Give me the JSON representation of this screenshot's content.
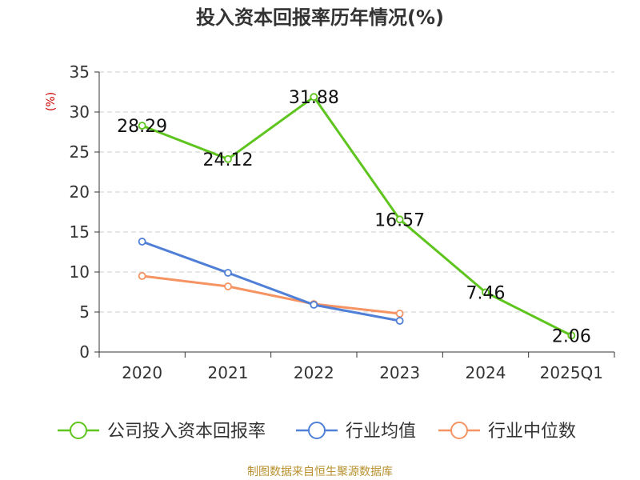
{
  "chart_data": {
    "type": "line",
    "title": "投入资本回报率历年情况(%)",
    "ylabel": "(%)",
    "categories": [
      "2020",
      "2021",
      "2022",
      "2023",
      "2024",
      "2025Q1"
    ],
    "ylim": [
      0,
      35
    ],
    "yticks": [
      0,
      5,
      10,
      15,
      20,
      25,
      30,
      35
    ],
    "grid": "horizontal-dashed",
    "legend_position": "bottom",
    "series": [
      {
        "name": "公司投入资本回报率",
        "color": "#5ec41e",
        "values": [
          28.29,
          24.12,
          31.88,
          16.57,
          7.46,
          2.06
        ],
        "labels": [
          "28.29",
          "24.12",
          "31.88",
          "16.57",
          "7.46",
          "2.06"
        ],
        "show_labels": true
      },
      {
        "name": "行业均值",
        "color": "#4f7fd6",
        "values": [
          13.8,
          9.9,
          5.9,
          3.9,
          null,
          null
        ],
        "show_labels": false
      },
      {
        "name": "行业中位数",
        "color": "#f59363",
        "values": [
          9.5,
          8.2,
          6.0,
          4.8,
          null,
          null
        ],
        "show_labels": false
      }
    ]
  },
  "source": "制图数据来自恒生聚源数据库",
  "colors": {
    "title": "#333333",
    "axis": "#333333",
    "ylabel": "#cc0000",
    "grid": "#cccccc",
    "source": "#b8912e"
  }
}
